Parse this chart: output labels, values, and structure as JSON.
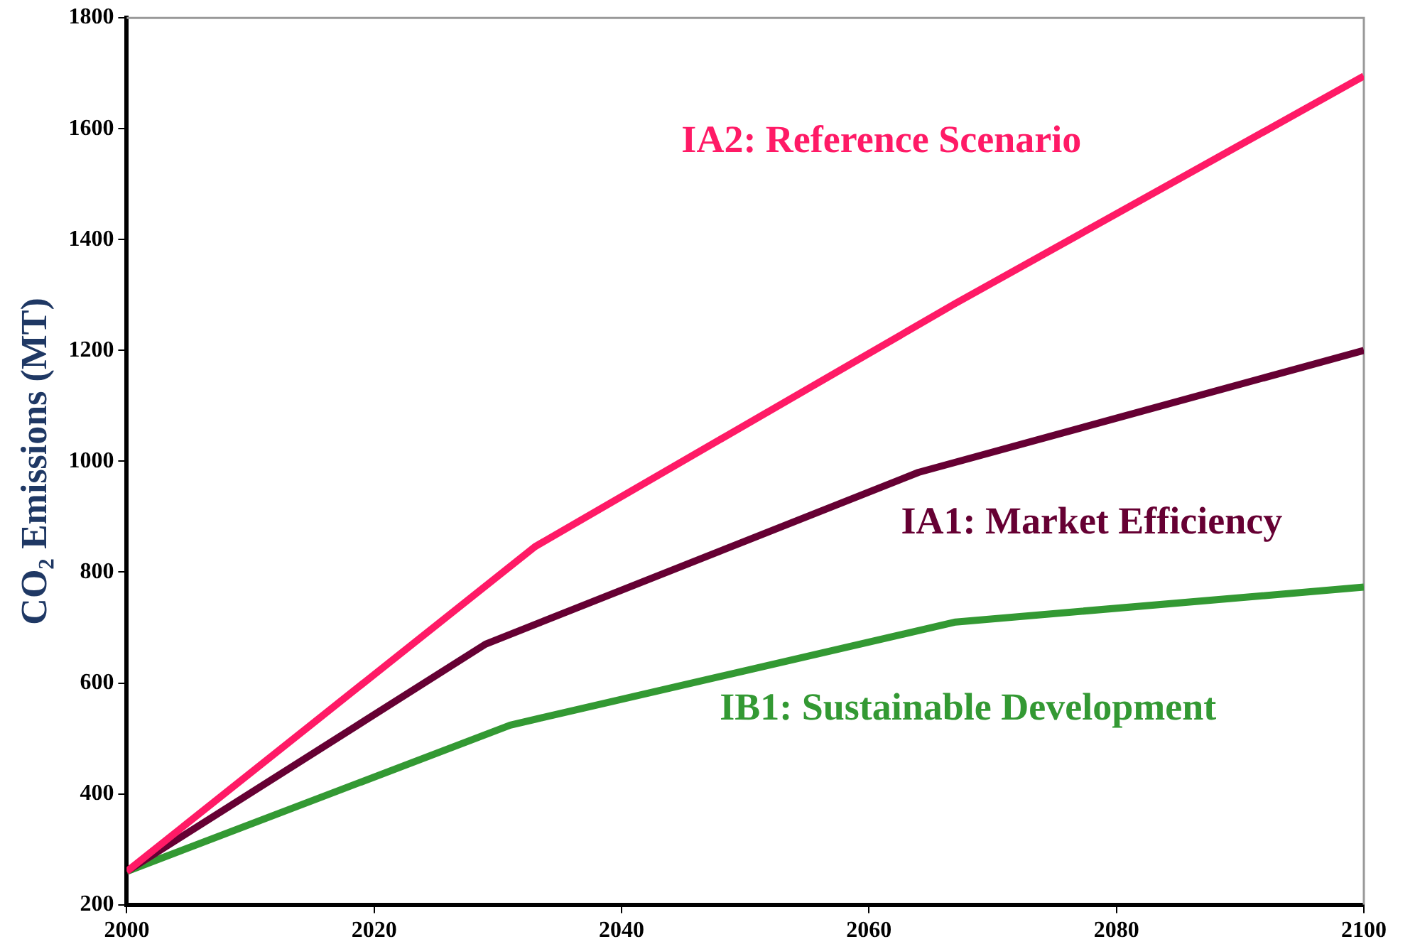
{
  "chart_data": {
    "type": "line",
    "ylabel": "CO₂ Emissions (MT)",
    "xlim": [
      2000,
      2100
    ],
    "xticks": [
      2000,
      2020,
      2040,
      2060,
      2080,
      2100
    ],
    "ylim": [
      200,
      1800
    ],
    "yticks": [
      200,
      400,
      600,
      800,
      1000,
      1200,
      1400,
      1600,
      1800
    ],
    "grid": false,
    "legend": false,
    "marker": "none",
    "line_style": "solid",
    "series": [
      {
        "name": "IA2: Reference Scenario",
        "color": "#ff1a66",
        "x": [
          2000,
          2033,
          2067,
          2100
        ],
        "values": [
          260,
          846,
          1285,
          1695
        ]
      },
      {
        "name": "IA1: Market Efficiency",
        "color": "#660033",
        "x": [
          2000,
          2029,
          2064,
          2100
        ],
        "values": [
          260,
          670,
          980,
          1200
        ]
      },
      {
        "name": "IB1: Sustainable Development",
        "color": "#339933",
        "x": [
          2000,
          2031,
          2067,
          2100
        ],
        "values": [
          260,
          524,
          710,
          773
        ]
      }
    ]
  }
}
